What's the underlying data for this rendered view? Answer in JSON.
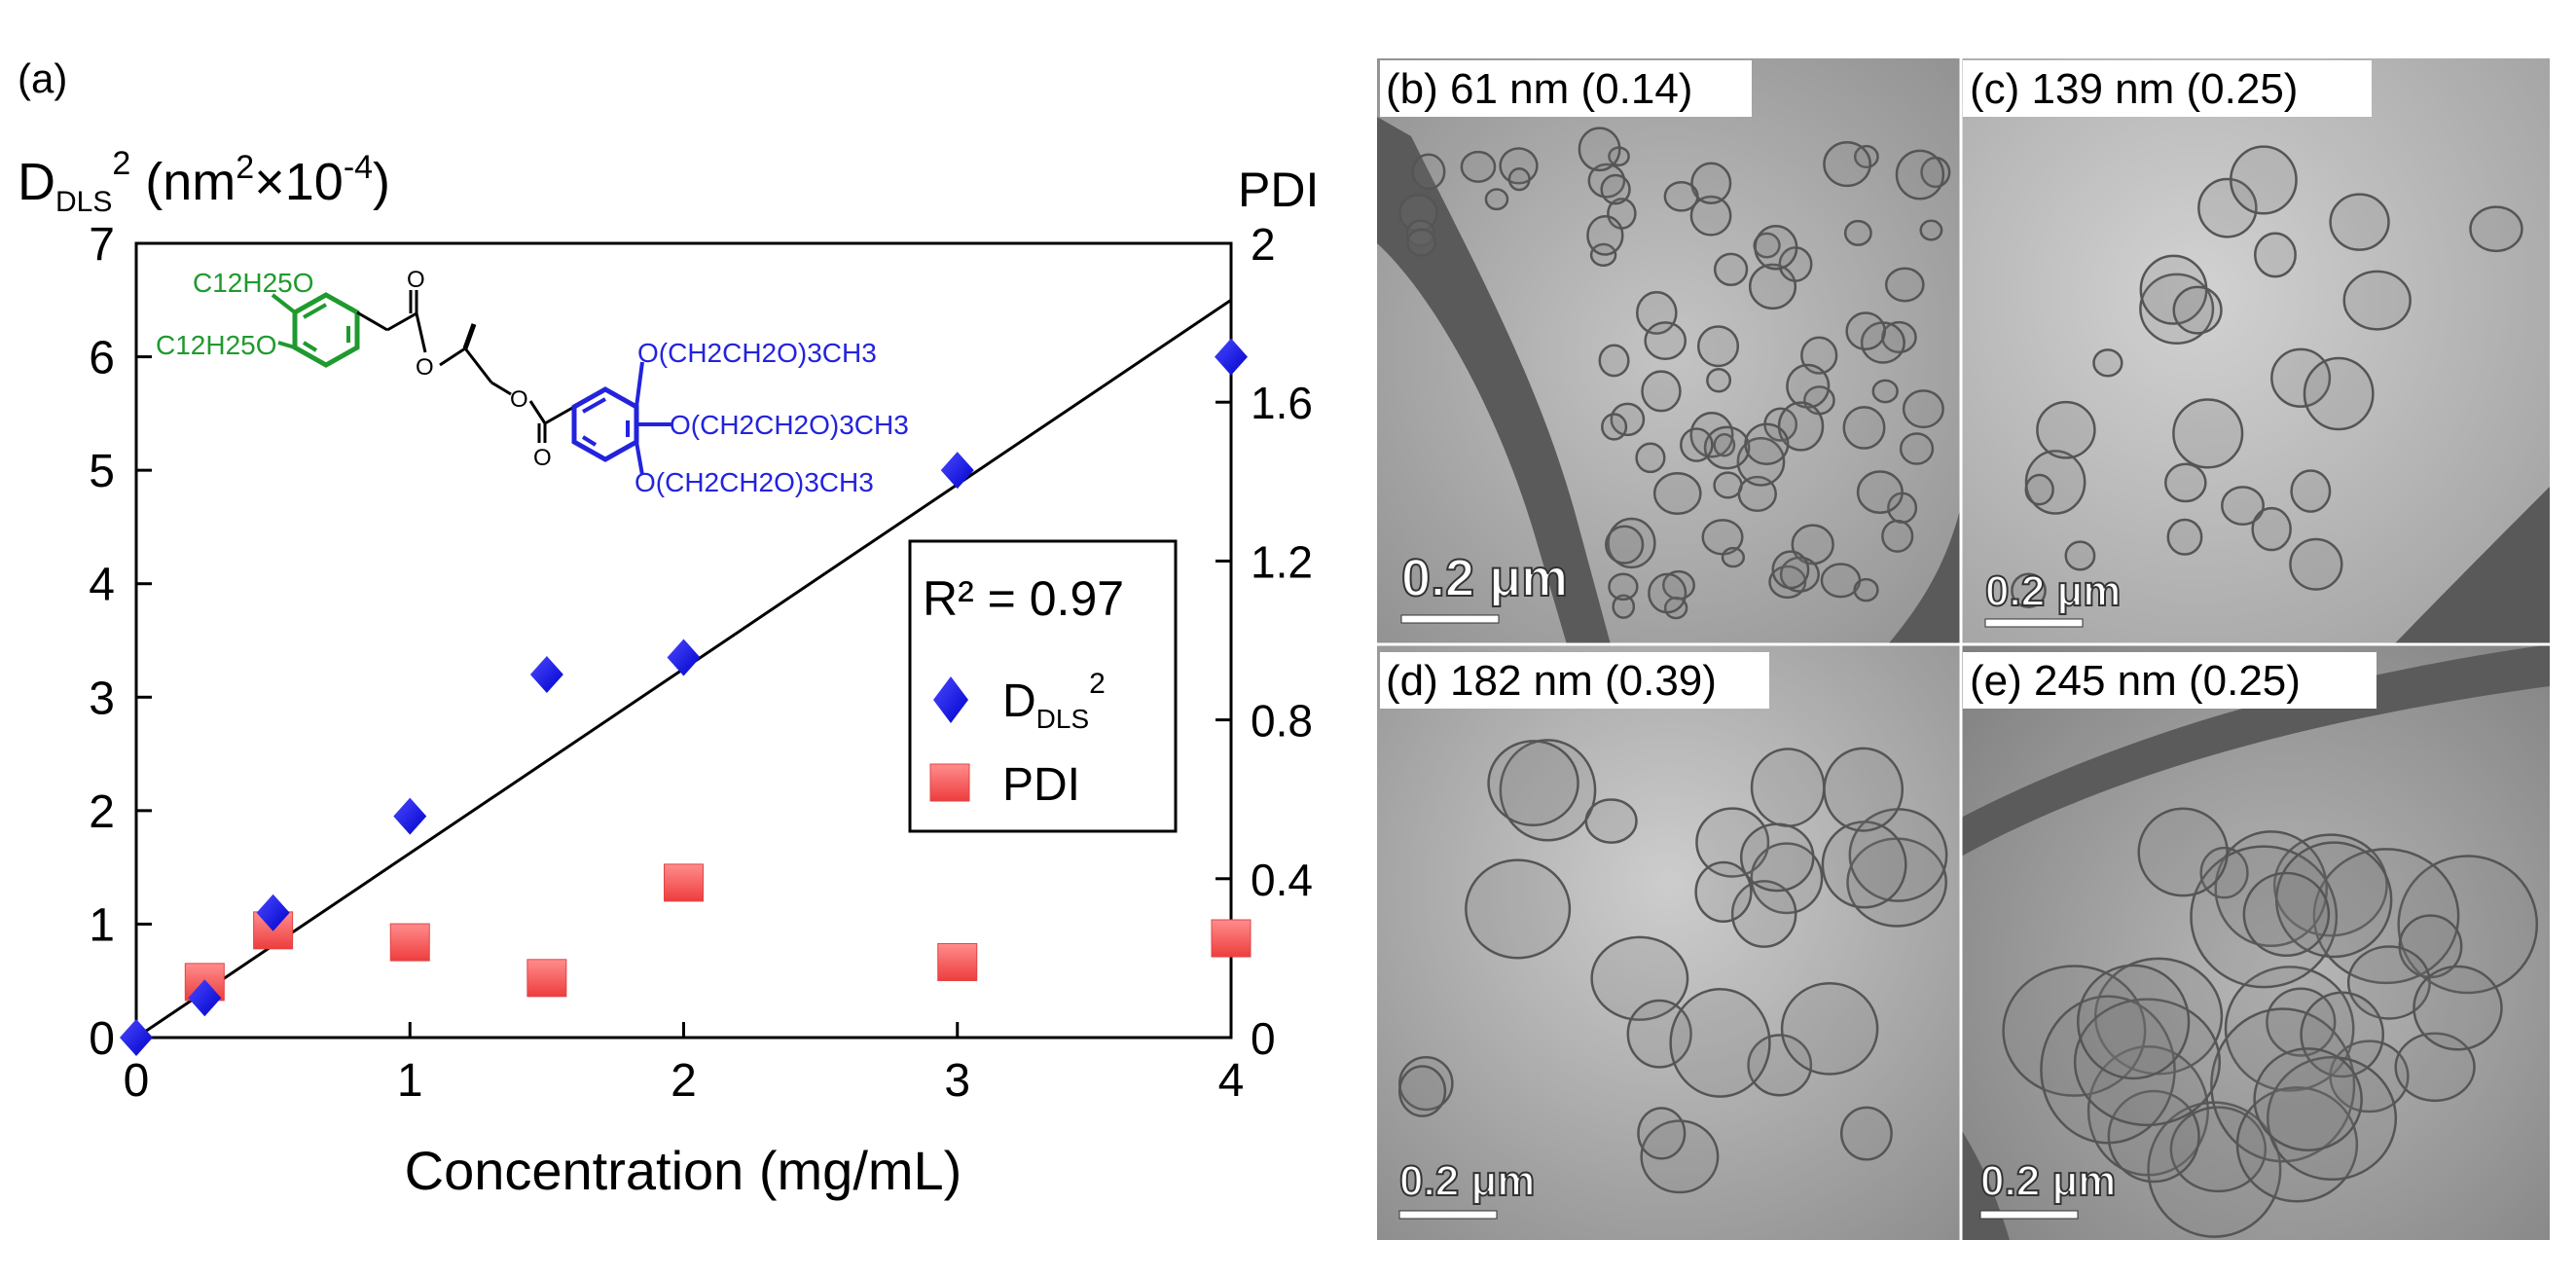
{
  "panel_a_label": "(a)",
  "chart_data": {
    "type": "scatter",
    "xlabel": "Concentration (mg/mL)",
    "ylabel_left": {
      "base": "D",
      "sub": "DLS",
      "sup": "2",
      "unit_open": " (nm",
      "unit_sup": "2",
      "unit_mid": "×10",
      "unit_exp": "-4",
      "unit_close": ")"
    },
    "ylabel_right": "PDI",
    "xlim": [
      0,
      4
    ],
    "ylim_left": [
      0,
      7
    ],
    "ylim_right": [
      0,
      2
    ],
    "xticks": [
      "0",
      "1",
      "2",
      "3",
      "4"
    ],
    "xtick_values": [
      0,
      1,
      2,
      3,
      4
    ],
    "yticks_left": [
      "0",
      "1",
      "2",
      "3",
      "4",
      "5",
      "6",
      "7"
    ],
    "ytick_left_values": [
      0,
      1,
      2,
      3,
      4,
      5,
      6,
      7
    ],
    "yticks_right": [
      "0",
      "0.4",
      "0.8",
      "1.2",
      "1.6",
      "2"
    ],
    "ytick_right_values": [
      0,
      0.4,
      0.8,
      1.2,
      1.6,
      2
    ],
    "series": [
      {
        "name": "D_DLS^2",
        "legend_base": "D",
        "legend_sub": "DLS",
        "legend_sup": "2",
        "axis": "left",
        "marker": "diamond",
        "color": "#1010ee",
        "x": [
          0,
          0.25,
          0.5,
          1,
          1.5,
          2,
          3,
          4
        ],
        "y": [
          0,
          0.35,
          1.1,
          1.95,
          3.2,
          3.35,
          5.0,
          6.0
        ]
      },
      {
        "name": "PDI",
        "legend_label": "PDI",
        "axis": "right",
        "marker": "square",
        "color": "#f05555",
        "x": [
          0.25,
          0.5,
          1,
          1.5,
          2,
          3,
          4
        ],
        "y": [
          0.14,
          0.27,
          0.24,
          0.15,
          0.39,
          0.19,
          0.25
        ]
      }
    ],
    "fit": {
      "x": [
        0,
        4
      ],
      "y": [
        0,
        6.5
      ],
      "r2_label": "R² = 0.97"
    }
  },
  "chemical_structure": {
    "green_top": "C12H25O",
    "green_bottom": "C12H25O",
    "blue_1": "O(CH2CH2O)3CH3",
    "blue_2": "O(CH2CH2O)3CH3",
    "blue_3": "O(CH2CH2O)3CH3",
    "green_color": "#1f9a2e",
    "blue_color": "#2323dd"
  },
  "tem_panels": [
    {
      "label": "(b) 61 nm (0.14)",
      "scale": "0.2 μm"
    },
    {
      "label": "(c) 139 nm (0.25)",
      "scale": "0.2 μm"
    },
    {
      "label": "(d) 182 nm (0.39)",
      "scale": "0.2 μm"
    },
    {
      "label": "(e) 245 nm (0.25)",
      "scale": "0.2 μm"
    }
  ]
}
